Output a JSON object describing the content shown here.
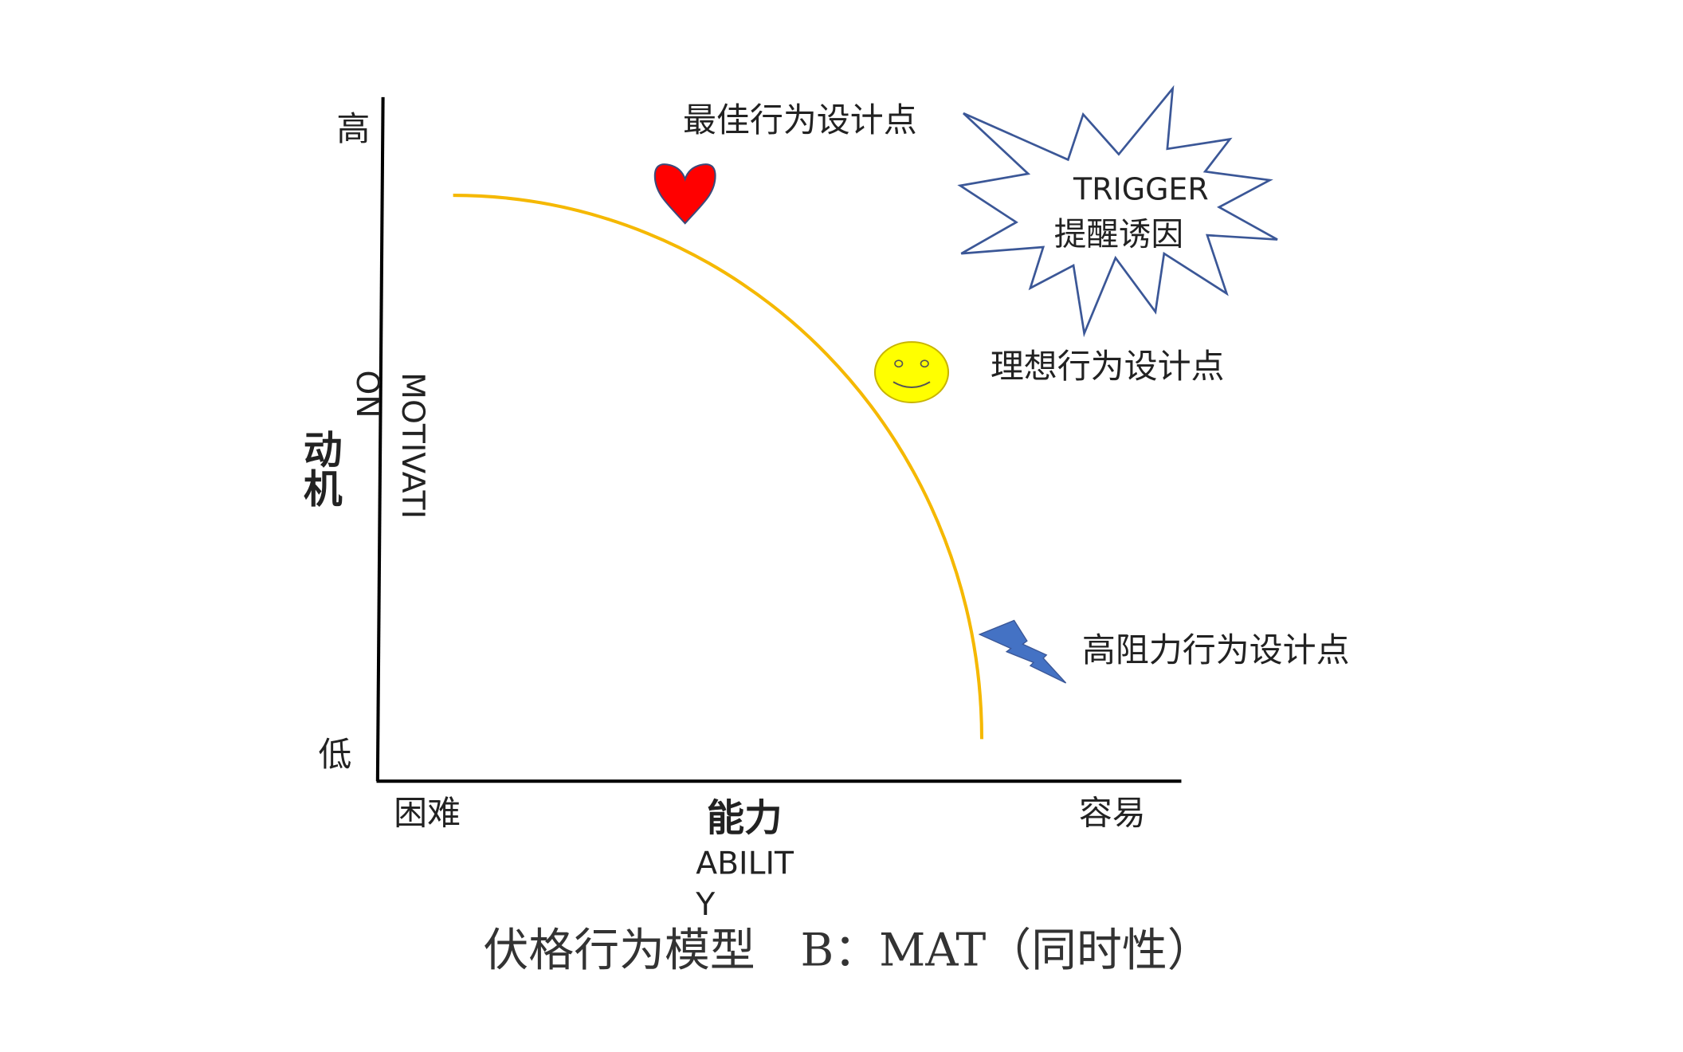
{
  "axes": {
    "y_high": "高",
    "y_low": "低",
    "y_title_cn": "动机",
    "y_title_en_part1": "MOTIVATI",
    "y_title_en_part2": "ON",
    "x_left": "困难",
    "x_right": "容易",
    "x_title_cn": "能力",
    "x_title_en_part1": "ABILIT",
    "x_title_en_part2": "Y"
  },
  "annotations": {
    "best_point": "最佳行为设计点",
    "ideal_point": "理想行为设计点",
    "high_resistance_point": "高阻力行为设计点",
    "trigger_en": "TRIGGER",
    "trigger_cn": "提醒诱因"
  },
  "caption": "伏格行为模型　B：MAT（同时性）",
  "colors": {
    "curve": "#f5b800",
    "heart": "#ff0000",
    "smiley": "#ffff00",
    "lightning": "#4472c4",
    "starburst_outline": "#3b5797"
  },
  "icons": [
    "heart-icon",
    "smiley-icon",
    "lightning-icon",
    "starburst-shape"
  ]
}
